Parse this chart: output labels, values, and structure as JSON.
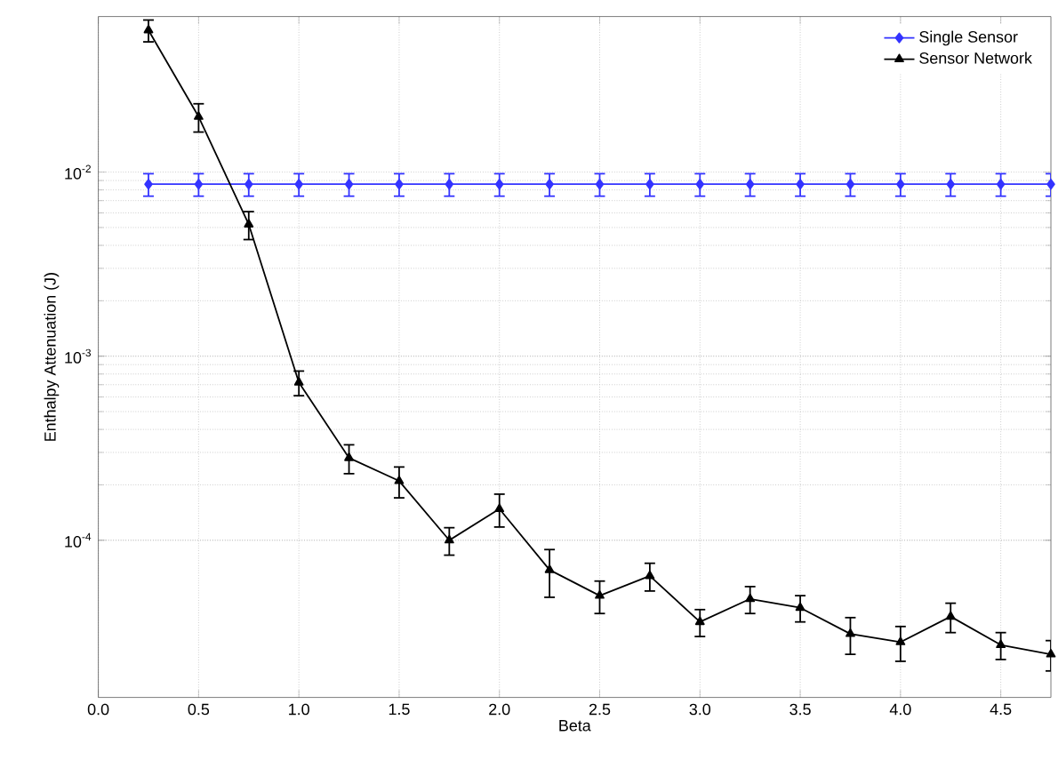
{
  "chart_data": {
    "type": "line",
    "xlabel": "Beta",
    "ylabel": "Enthalpy Attenuation (J)",
    "x": [
      0.25,
      0.5,
      0.75,
      1.0,
      1.25,
      1.5,
      1.75,
      2.0,
      2.25,
      2.5,
      2.75,
      3.0,
      3.25,
      3.5,
      3.75,
      4.0,
      4.25,
      4.5,
      4.75
    ],
    "series": [
      {
        "name": "Single Sensor",
        "color": "#3333ff",
        "marker": "diamond",
        "values": [
          0.0086,
          0.0086,
          0.0086,
          0.0086,
          0.0086,
          0.0086,
          0.0086,
          0.0086,
          0.0086,
          0.0086,
          0.0086,
          0.0086,
          0.0086,
          0.0086,
          0.0086,
          0.0086,
          0.0086,
          0.0086,
          0.0086
        ],
        "errors": [
          0.0012,
          0.0012,
          0.0012,
          0.0012,
          0.0012,
          0.0012,
          0.0012,
          0.0012,
          0.0012,
          0.0012,
          0.0012,
          0.0012,
          0.0012,
          0.0012,
          0.0012,
          0.0012,
          0.0012,
          0.0012,
          0.0012
        ]
      },
      {
        "name": "Sensor Network",
        "color": "#000000",
        "marker": "triangle",
        "values": [
          0.059,
          0.02,
          0.0052,
          0.00072,
          0.00028,
          0.00021,
          0.0001,
          0.000148,
          6.9e-05,
          5e-05,
          6.4e-05,
          3.6e-05,
          4.8e-05,
          4.3e-05,
          3.1e-05,
          2.8e-05,
          3.85e-05,
          2.7e-05,
          2.4e-05
        ],
        "errors": [
          0.008,
          0.0035,
          0.0009,
          0.00011,
          5e-05,
          4e-05,
          1.7e-05,
          3e-05,
          2e-05,
          1e-05,
          1.1e-05,
          6e-06,
          8e-06,
          7e-06,
          7e-06,
          6e-06,
          7e-06,
          4.5e-06,
          4.5e-06
        ]
      }
    ],
    "log": "y",
    "xlim": [
      0,
      4.75
    ],
    "ylim": [
      1.4e-05,
      0.07
    ],
    "xticks": [
      {
        "value": 0,
        "label": "0.0"
      },
      0.5,
      {
        "value": 1,
        "label": "1.0"
      },
      1.5,
      {
        "value": 2,
        "label": "2.0"
      },
      2.5,
      {
        "value": 3,
        "label": "3.0"
      },
      3.5,
      {
        "value": 4,
        "label": "4.0"
      },
      4.5
    ],
    "yticks": [
      {
        "value": 0.0001,
        "label": "10$^{-4}$"
      },
      {
        "value": 0.001,
        "label": "10$^{-3}$"
      },
      {
        "value": 0.01,
        "label": "10$^{-2}$"
      }
    ],
    "grid": true,
    "legend": "top right",
    "line_style": "solid"
  }
}
